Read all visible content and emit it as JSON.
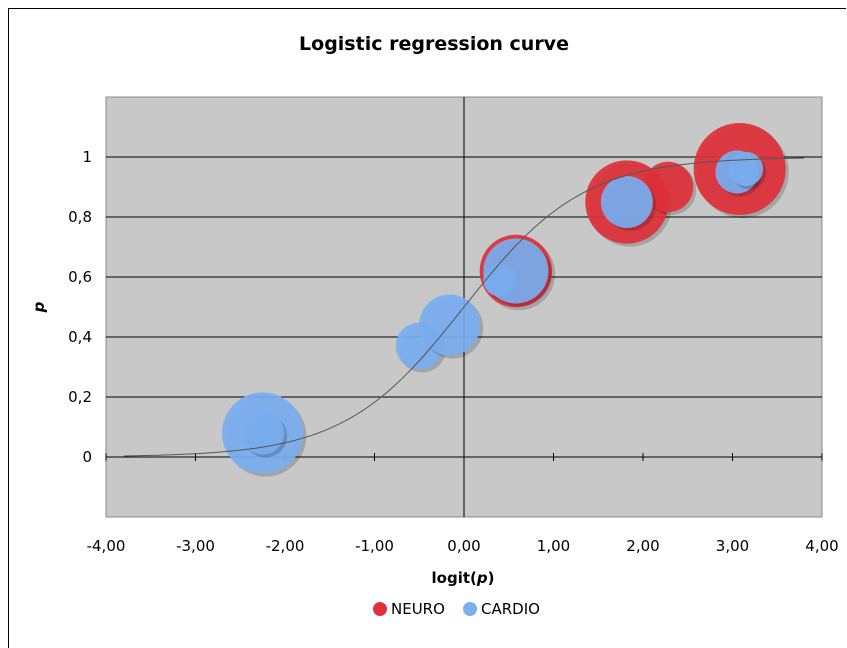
{
  "chart_data": {
    "type": "bubble",
    "title": "Logistic regression curve",
    "xlabel_prefix": "logit(",
    "xlabel_var": "p",
    "xlabel_suffix": ")",
    "ylabel": "p",
    "xlim": [
      -4,
      4
    ],
    "ylim": [
      -0.2,
      1.2
    ],
    "x_ticks": [
      "-4,00",
      "-3,00",
      "-2,00",
      "-1,00",
      "0,00",
      "1,00",
      "2,00",
      "3,00",
      "4,00"
    ],
    "x_tick_values": [
      -4,
      -3,
      -2,
      -1,
      0,
      1,
      2,
      3,
      4
    ],
    "y_ticks": [
      "0",
      "0,2",
      "0,4",
      "0,6",
      "0,8",
      "1"
    ],
    "y_tick_values": [
      0,
      0.2,
      0.4,
      0.6,
      0.8,
      1
    ],
    "grid": true,
    "legend_position": "bottom",
    "colors": {
      "plot_bg": "#c8c8c8",
      "neuro": "#e0303a",
      "cardio": "#7aaef0",
      "curve": "#555555"
    },
    "series": [
      {
        "name": "NEURO",
        "color": "#e0303a",
        "points": [
          {
            "x": 0.58,
            "y": 0.62,
            "size": 0.62
          },
          {
            "x": 1.82,
            "y": 0.85,
            "size": 0.82
          },
          {
            "x": 2.28,
            "y": 0.9,
            "size": 0.3
          },
          {
            "x": 3.08,
            "y": 0.96,
            "size": 1.0
          }
        ]
      },
      {
        "name": "CARDIO",
        "color": "#7aaef0",
        "points": [
          {
            "x": -2.25,
            "y": 0.08,
            "size": 0.78
          },
          {
            "x": -2.25,
            "y": 0.08,
            "size": 0.22
          },
          {
            "x": -0.5,
            "y": 0.37,
            "size": 0.26
          },
          {
            "x": -0.16,
            "y": 0.44,
            "size": 0.44
          },
          {
            "x": 0.4,
            "y": 0.59,
            "size": 0.13
          },
          {
            "x": 0.58,
            "y": 0.62,
            "size": 0.5
          },
          {
            "x": 1.82,
            "y": 0.85,
            "size": 0.32
          },
          {
            "x": 3.05,
            "y": 0.95,
            "size": 0.22
          },
          {
            "x": 3.15,
            "y": 0.96,
            "size": 0.14
          }
        ]
      }
    ],
    "curve": {
      "type": "logistic",
      "k": 1.5,
      "x_from": -3.8,
      "x_to": 3.8
    }
  }
}
